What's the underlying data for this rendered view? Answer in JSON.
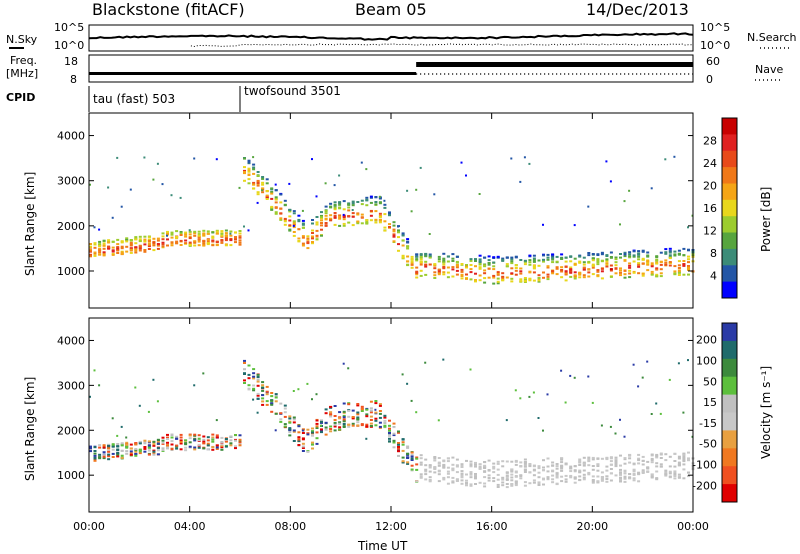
{
  "header": {
    "station": "Blackstone (fitACF)",
    "beam": "Beam 05",
    "date": "14/Dec/2013"
  },
  "summary": {
    "nsky_label": "N.Sky",
    "nsearch_label": "N.Search",
    "y_top": "10^5",
    "y_bottom": "10^0",
    "freq_label": "Freq.",
    "freq_unit": "[MHz]",
    "freq_ticks": [
      "18",
      "8"
    ],
    "nave_label": "Nave",
    "nave_ticks": [
      "60",
      "0"
    ],
    "cpid_label": "CPID",
    "cpid_segments": [
      {
        "name": "tau (fast) 503",
        "start_hour": 0,
        "end_hour": 6
      },
      {
        "name": "twofsound 3501",
        "start_hour": 6,
        "end_hour": 24
      }
    ]
  },
  "colors": {
    "power": [
      "#0000ff",
      "#2356a6",
      "#3c8c78",
      "#57a53e",
      "#9ccc2e",
      "#e8d71c",
      "#f5a516",
      "#f07818",
      "#e84a1a",
      "#e02020",
      "#c80000"
    ],
    "velocity": [
      "#2a3aa6",
      "#1f6b6b",
      "#3c8a3c",
      "#5cbf3c",
      "#c0c0c0",
      "#c8c8c8",
      "#e8a040",
      "#f07820",
      "#f05020",
      "#e00000"
    ]
  },
  "chart_data": [
    {
      "type": "heatmap",
      "title": "Power",
      "xlabel": "",
      "ylabel": "Slant Range [km]",
      "x_ticks": [
        "00:00",
        "04:00",
        "08:00",
        "12:00",
        "16:00",
        "20:00",
        "00:00"
      ],
      "xlim_hours": [
        0,
        24
      ],
      "ylim_km": [
        180,
        4500
      ],
      "y_ticks": [
        1000,
        2000,
        3000,
        4000
      ],
      "colorbar_label": "Power [dB]",
      "colorbar_ticks": [
        4,
        8,
        12,
        16,
        20,
        24,
        28
      ],
      "features": [
        {
          "name": "main scatter band",
          "hours": [
            0,
            2.8,
            3.0
          ],
          "range_km": [
            1450,
            1600,
            1700
          ]
        },
        {
          "name": "rising band",
          "hours": [
            6,
            7.5,
            8.6,
            9.5,
            11.5,
            13
          ],
          "range_km": [
            3300,
            2400,
            1650,
            2200,
            2300,
            1000
          ]
        },
        {
          "name": "post-13 UT band",
          "hours": [
            13,
            16,
            20,
            24
          ],
          "range_km": [
            1100,
            950,
            1050,
            1150
          ]
        }
      ]
    },
    {
      "type": "heatmap",
      "title": "Velocity",
      "xlabel": "Time UT",
      "ylabel": "Slant Range [km]",
      "x_ticks": [
        "00:00",
        "04:00",
        "08:00",
        "12:00",
        "16:00",
        "20:00",
        "00:00"
      ],
      "xlim_hours": [
        0,
        24
      ],
      "ylim_km": [
        180,
        4500
      ],
      "y_ticks": [
        1000,
        2000,
        3000,
        4000
      ],
      "colorbar_label": "Velocity [m s⁻¹]",
      "colorbar_ticks": [
        200,
        100,
        50,
        15,
        -15,
        -50,
        -100,
        -200
      ]
    }
  ]
}
